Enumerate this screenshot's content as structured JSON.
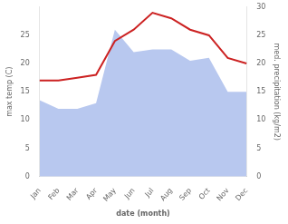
{
  "chart_data": {
    "type": "line",
    "xlabel": "date (month)",
    "ylabel": "max temp (C)",
    "y2label": "med. precipitation (kg/m2)",
    "categories": [
      "Jan",
      "Feb",
      "Mar",
      "Apr",
      "May",
      "Jun",
      "Jul",
      "Aug",
      "Sep",
      "Oct",
      "Nov",
      "Dec"
    ],
    "series": [
      {
        "type": "area",
        "color": "#b8c8ef",
        "values": [
          13.5,
          12.0,
          12.0,
          13.0,
          26.0,
          22.0,
          22.5,
          22.5,
          20.5,
          21.0,
          15.0,
          15.0
        ]
      },
      {
        "type": "line",
        "color": "#cc2222",
        "axis": "y2",
        "values": [
          17.0,
          17.0,
          17.5,
          18.0,
          24.0,
          26.0,
          29.0,
          28.0,
          26.0,
          25.0,
          21.0,
          20.0
        ]
      }
    ],
    "ylim": [
      0,
      30
    ],
    "yticks": [
      0,
      5,
      10,
      15,
      20,
      25
    ],
    "y2lim": [
      0,
      30
    ],
    "y2ticks": [
      0,
      5,
      10,
      15,
      20,
      25,
      30
    ],
    "grid": false
  }
}
